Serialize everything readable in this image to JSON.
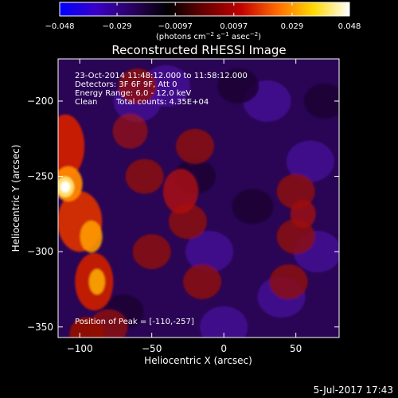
{
  "chart_data": {
    "type": "heatmap",
    "title": "Reconstructed RHESSI Image",
    "xlabel": "Heliocentric X (arcsec)",
    "ylabel": "Heliocentric Y (arcsec)",
    "xlim": [
      -115,
      80
    ],
    "ylim": [
      -357,
      -172
    ],
    "x_ticks": [
      -100,
      -50,
      0,
      50
    ],
    "x_tick_labels": [
      "−100",
      "−50",
      "0",
      "50"
    ],
    "y_ticks": [
      -200,
      -250,
      -300,
      -350
    ],
    "y_tick_labels": [
      "−200",
      "−250",
      "−300",
      "−350"
    ],
    "colorbar": {
      "range": [
        -0.048,
        0.048
      ],
      "tick_values": [
        -0.048,
        -0.029,
        -0.0097,
        0.0097,
        0.029,
        0.048
      ],
      "tick_labels": [
        "−0.048",
        "−0.029",
        "−0.0097",
        "0.0097",
        "0.029",
        "0.048"
      ],
      "unit_prefix": "(photons cm",
      "unit_exp1": "−2",
      "unit_mid": " s",
      "unit_exp2": "−1",
      "unit_mid2": " asec",
      "unit_exp3": "−2",
      "unit_suffix": ")",
      "colormap": [
        "#0000ff",
        "#3a00c8",
        "#2a0060",
        "#000000",
        "#6a0000",
        "#c00000",
        "#ff6a00",
        "#ffd800",
        "#ffffff"
      ]
    },
    "annotations": {
      "line1": "23-Oct-2014 11:48:12.000 to 11:58:12.000",
      "line2": "Detectors: 3F 6F 9F, Att 0",
      "line3": "Energy Range: 6.0 - 12.0 keV",
      "line4_a": "Clean",
      "line4_b": "Total counts: 4.35E+04",
      "peak": "Position of Peak = [-110,-257]"
    },
    "peak_position": [
      -110,
      -257
    ],
    "peak_value": 0.048
  },
  "footer": {
    "date": "5-Jul-2017 17:43"
  }
}
